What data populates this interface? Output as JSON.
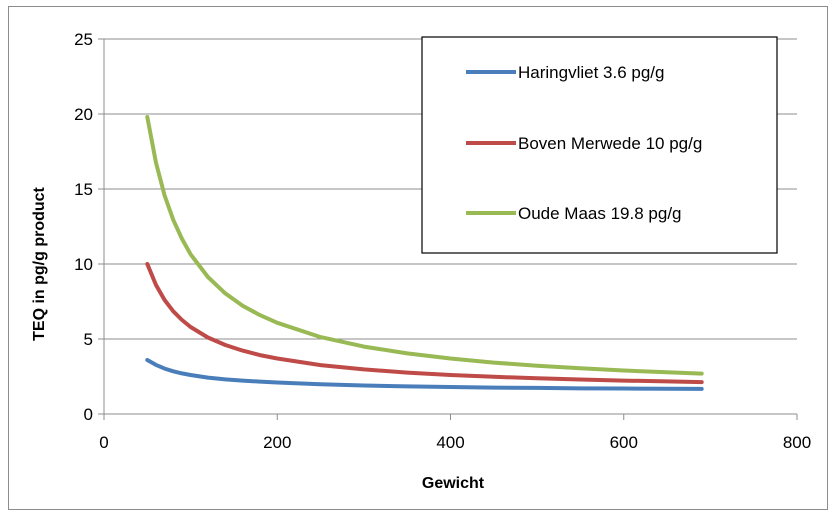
{
  "chart_data": {
    "type": "line",
    "title": "",
    "xlabel": "Gewicht",
    "ylabel": "TEQ in pg/g product",
    "xlim": [
      0,
      800
    ],
    "ylim": [
      0,
      25
    ],
    "xticks": [
      0,
      200,
      400,
      600,
      800
    ],
    "yticks": [
      0,
      5,
      10,
      15,
      20,
      25
    ],
    "grid": "horizontal",
    "legend_position": "top-right",
    "x": [
      50,
      60,
      70,
      80,
      90,
      100,
      120,
      140,
      160,
      180,
      200,
      250,
      300,
      350,
      400,
      450,
      500,
      550,
      600,
      650,
      690
    ],
    "series": [
      {
        "name": "Haringvliet 3.6 pg/g",
        "color": "#4a7ebb",
        "values": [
          3.6,
          3.27,
          3.03,
          2.85,
          2.71,
          2.6,
          2.43,
          2.31,
          2.23,
          2.16,
          2.1,
          1.98,
          1.9,
          1.84,
          1.8,
          1.76,
          1.74,
          1.71,
          1.7,
          1.68,
          1.67
        ]
      },
      {
        "name": "Boven Merwede 10 pg/g",
        "color": "#be4b48",
        "values": [
          10.0,
          8.6,
          7.6,
          6.85,
          6.27,
          5.8,
          5.1,
          4.6,
          4.23,
          3.93,
          3.7,
          3.26,
          2.97,
          2.76,
          2.6,
          2.48,
          2.38,
          2.3,
          2.23,
          2.17,
          2.13
        ]
      },
      {
        "name": "Oude Maas 19.8 pg/g",
        "color": "#98b954",
        "values": [
          19.8,
          16.75,
          14.57,
          12.94,
          11.67,
          10.65,
          9.13,
          8.04,
          7.22,
          6.59,
          6.08,
          5.13,
          4.49,
          4.04,
          3.7,
          3.43,
          3.22,
          3.05,
          2.9,
          2.78,
          2.69
        ]
      }
    ]
  }
}
